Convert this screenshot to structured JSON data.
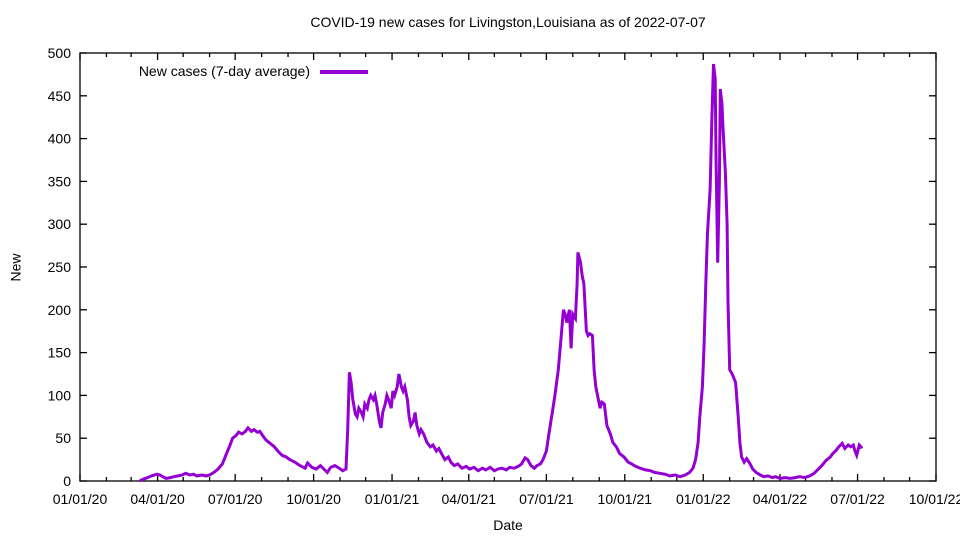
{
  "title": "COVID-19 new cases for Livingston,Louisiana as of 2022-07-07",
  "legend": {
    "label": "New cases (7-day average)"
  },
  "axes": {
    "x_label": "Date",
    "y_label": "New"
  },
  "colors": {
    "line": "#9400D3",
    "axis": "#000000",
    "text": "#000000",
    "background": "#ffffff"
  },
  "chart_data": {
    "type": "line",
    "title": "COVID-19 new cases for Livingston,Louisiana as of 2022-07-07",
    "xlabel": "Date",
    "ylabel": "New",
    "ylim": [
      0,
      500
    ],
    "y_ticks": [
      0,
      50,
      100,
      150,
      200,
      250,
      300,
      350,
      400,
      450,
      500
    ],
    "xlim_days": [
      0,
      1004
    ],
    "x_tick_labels": [
      "01/01/20",
      "04/01/20",
      "07/01/20",
      "10/01/20",
      "01/01/21",
      "04/01/21",
      "07/01/21",
      "10/01/21",
      "01/01/22",
      "04/01/22",
      "07/01/22",
      "10/01/22"
    ],
    "x_tick_t": [
      0,
      91,
      182,
      274,
      366,
      456,
      547,
      639,
      731,
      821,
      912,
      1004
    ],
    "x_minor_t": [
      31,
      60,
      121,
      152,
      213,
      244,
      305,
      335,
      397,
      425,
      486,
      517,
      578,
      609,
      670,
      700,
      762,
      790,
      851,
      882,
      943,
      973
    ],
    "grid": false,
    "legend_position": "top-left-inside",
    "line_color": "#9400D3",
    "series": [
      {
        "name": "New cases (7-day average)",
        "points": [
          [
            70,
            0
          ],
          [
            74,
            2
          ],
          [
            79,
            4
          ],
          [
            84,
            6
          ],
          [
            90,
            8
          ],
          [
            94,
            7
          ],
          [
            97,
            5
          ],
          [
            101,
            3
          ],
          [
            106,
            4
          ],
          [
            110,
            5
          ],
          [
            115,
            6
          ],
          [
            120,
            7
          ],
          [
            124,
            9
          ],
          [
            129,
            7
          ],
          [
            133,
            8
          ],
          [
            137,
            6
          ],
          [
            143,
            7
          ],
          [
            148,
            6
          ],
          [
            152,
            7
          ],
          [
            157,
            10
          ],
          [
            162,
            14
          ],
          [
            167,
            20
          ],
          [
            171,
            30
          ],
          [
            176,
            42
          ],
          [
            179,
            50
          ],
          [
            183,
            53
          ],
          [
            186,
            57
          ],
          [
            190,
            55
          ],
          [
            194,
            58
          ],
          [
            197,
            62
          ],
          [
            201,
            58
          ],
          [
            204,
            60
          ],
          [
            208,
            57
          ],
          [
            211,
            58
          ],
          [
            215,
            52
          ],
          [
            218,
            48
          ],
          [
            223,
            44
          ],
          [
            228,
            40
          ],
          [
            232,
            35
          ],
          [
            237,
            30
          ],
          [
            242,
            28
          ],
          [
            246,
            25
          ],
          [
            252,
            22
          ],
          [
            258,
            18
          ],
          [
            264,
            15
          ],
          [
            267,
            21
          ],
          [
            272,
            16
          ],
          [
            277,
            14
          ],
          [
            282,
            18
          ],
          [
            286,
            14
          ],
          [
            290,
            10
          ],
          [
            294,
            16
          ],
          [
            299,
            18
          ],
          [
            304,
            15
          ],
          [
            308,
            12
          ],
          [
            312,
            14
          ],
          [
            314,
            60
          ],
          [
            316,
            127
          ],
          [
            318,
            115
          ],
          [
            320,
            95
          ],
          [
            323,
            78
          ],
          [
            325,
            75
          ],
          [
            327,
            85
          ],
          [
            330,
            80
          ],
          [
            332,
            75
          ],
          [
            334,
            90
          ],
          [
            337,
            85
          ],
          [
            339,
            95
          ],
          [
            341,
            100
          ],
          [
            344,
            95
          ],
          [
            346,
            100
          ],
          [
            348,
            90
          ],
          [
            351,
            70
          ],
          [
            353,
            62
          ],
          [
            355,
            80
          ],
          [
            358,
            90
          ],
          [
            360,
            100
          ],
          [
            362,
            95
          ],
          [
            365,
            85
          ],
          [
            367,
            105
          ],
          [
            369,
            100
          ],
          [
            372,
            110
          ],
          [
            374,
            125
          ],
          [
            377,
            110
          ],
          [
            379,
            105
          ],
          [
            381,
            110
          ],
          [
            384,
            95
          ],
          [
            386,
            75
          ],
          [
            388,
            65
          ],
          [
            391,
            70
          ],
          [
            393,
            80
          ],
          [
            395,
            65
          ],
          [
            398,
            55
          ],
          [
            400,
            60
          ],
          [
            403,
            55
          ],
          [
            407,
            45
          ],
          [
            411,
            40
          ],
          [
            414,
            42
          ],
          [
            418,
            35
          ],
          [
            421,
            38
          ],
          [
            425,
            30
          ],
          [
            428,
            25
          ],
          [
            432,
            28
          ],
          [
            435,
            22
          ],
          [
            439,
            18
          ],
          [
            443,
            20
          ],
          [
            448,
            15
          ],
          [
            453,
            17
          ],
          [
            457,
            14
          ],
          [
            462,
            16
          ],
          [
            467,
            12
          ],
          [
            472,
            15
          ],
          [
            476,
            13
          ],
          [
            481,
            16
          ],
          [
            486,
            12
          ],
          [
            490,
            14
          ],
          [
            495,
            15
          ],
          [
            500,
            13
          ],
          [
            504,
            16
          ],
          [
            509,
            15
          ],
          [
            514,
            17
          ],
          [
            518,
            20
          ],
          [
            522,
            27
          ],
          [
            525,
            25
          ],
          [
            529,
            18
          ],
          [
            533,
            15
          ],
          [
            536,
            18
          ],
          [
            540,
            20
          ],
          [
            543,
            25
          ],
          [
            547,
            35
          ],
          [
            550,
            55
          ],
          [
            554,
            80
          ],
          [
            557,
            100
          ],
          [
            561,
            130
          ],
          [
            564,
            165
          ],
          [
            567,
            200
          ],
          [
            569,
            195
          ],
          [
            571,
            185
          ],
          [
            574,
            200
          ],
          [
            576,
            155
          ],
          [
            578,
            195
          ],
          [
            581,
            190
          ],
          [
            583,
            230
          ],
          [
            584,
            267
          ],
          [
            587,
            255
          ],
          [
            589,
            240
          ],
          [
            591,
            230
          ],
          [
            594,
            175
          ],
          [
            596,
            170
          ],
          [
            598,
            172
          ],
          [
            601,
            170
          ],
          [
            603,
            130
          ],
          [
            605,
            110
          ],
          [
            608,
            95
          ],
          [
            610,
            85
          ],
          [
            612,
            92
          ],
          [
            615,
            90
          ],
          [
            618,
            65
          ],
          [
            622,
            55
          ],
          [
            625,
            45
          ],
          [
            629,
            40
          ],
          [
            633,
            32
          ],
          [
            638,
            28
          ],
          [
            643,
            22
          ],
          [
            647,
            20
          ],
          [
            652,
            17
          ],
          [
            657,
            15
          ],
          [
            663,
            13
          ],
          [
            669,
            12
          ],
          [
            674,
            10
          ],
          [
            680,
            9
          ],
          [
            686,
            8
          ],
          [
            692,
            6
          ],
          [
            698,
            7
          ],
          [
            704,
            5
          ],
          [
            710,
            7
          ],
          [
            715,
            10
          ],
          [
            719,
            15
          ],
          [
            722,
            25
          ],
          [
            725,
            45
          ],
          [
            727,
            75
          ],
          [
            730,
            110
          ],
          [
            732,
            160
          ],
          [
            734,
            230
          ],
          [
            736,
            290
          ],
          [
            739,
            340
          ],
          [
            741,
            420
          ],
          [
            743,
            487
          ],
          [
            745,
            470
          ],
          [
            746,
            380
          ],
          [
            748,
            255
          ],
          [
            750,
            350
          ],
          [
            751,
            458
          ],
          [
            753,
            440
          ],
          [
            754,
            415
          ],
          [
            757,
            360
          ],
          [
            759,
            300
          ],
          [
            760,
            210
          ],
          [
            762,
            130
          ],
          [
            765,
            125
          ],
          [
            767,
            120
          ],
          [
            769,
            115
          ],
          [
            772,
            75
          ],
          [
            774,
            45
          ],
          [
            776,
            28
          ],
          [
            779,
            22
          ],
          [
            782,
            26
          ],
          [
            786,
            20
          ],
          [
            789,
            14
          ],
          [
            793,
            10
          ],
          [
            798,
            7
          ],
          [
            802,
            5
          ],
          [
            807,
            6
          ],
          [
            812,
            4
          ],
          [
            816,
            5
          ],
          [
            821,
            3
          ],
          [
            827,
            4
          ],
          [
            833,
            3
          ],
          [
            839,
            4
          ],
          [
            844,
            5
          ],
          [
            850,
            4
          ],
          [
            856,
            6
          ],
          [
            861,
            9
          ],
          [
            865,
            13
          ],
          [
            870,
            18
          ],
          [
            875,
            24
          ],
          [
            880,
            28
          ],
          [
            883,
            32
          ],
          [
            887,
            36
          ],
          [
            890,
            40
          ],
          [
            894,
            44
          ],
          [
            897,
            38
          ],
          [
            901,
            42
          ],
          [
            904,
            40
          ],
          [
            907,
            42
          ],
          [
            909,
            35
          ],
          [
            911,
            30
          ],
          [
            914,
            42
          ],
          [
            916,
            40
          ],
          [
            917,
            38
          ]
        ]
      }
    ]
  }
}
